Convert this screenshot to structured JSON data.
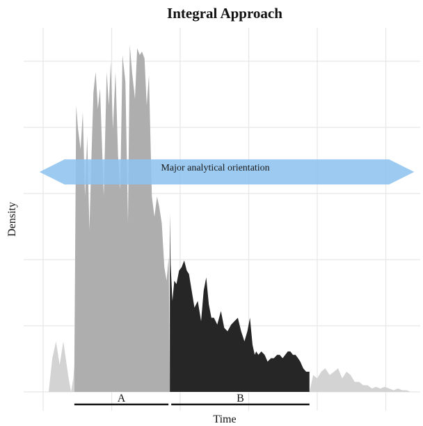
{
  "chart_data": {
    "type": "area",
    "title": "Integral Approach",
    "xlabel": "Time",
    "ylabel": "Density",
    "xlim": [
      0,
      100
    ],
    "ylim": [
      0,
      100
    ],
    "grid": true,
    "axis_ticks_shown": false,
    "segments": [
      {
        "label": "A",
        "x_start": 8.5,
        "x_end": 34.5,
        "color": "#aeaeae"
      },
      {
        "label": "B",
        "x_start": 34.5,
        "x_end": 72.5,
        "color": "#262626"
      }
    ],
    "tail_color": "#d3d3d3",
    "arrow": {
      "label": "Major analytical orientation",
      "x_start": -1,
      "x_end": 101,
      "color": "#8ec3ee"
    },
    "series": [
      {
        "x": [
          0,
          1.5,
          2.5,
          3.5,
          4.5,
          5.5,
          6.8,
          7.6,
          8.2,
          8.5,
          9.0,
          9.5,
          10.2,
          10.8,
          11.4,
          12.0,
          12.6,
          13.1,
          13.7,
          14.3,
          14.9,
          15.5,
          16.5,
          17.3,
          17.9,
          18.4,
          19.0,
          19.7,
          20.4,
          21.0,
          21.6,
          22.4,
          23.1,
          23.6,
          24.2,
          25.0,
          25.6,
          26.3,
          26.9,
          27.6,
          28.2,
          28.8,
          29.6,
          30.3,
          31.0,
          31.6,
          32.3,
          33.0,
          33.6,
          34.2,
          34.5,
          34.7,
          35.2,
          35.7,
          36.3,
          37.0,
          37.7,
          38.4,
          39.1,
          39.7,
          40.3,
          41.2,
          42.1,
          43.0,
          43.7,
          44.4,
          45.1,
          45.8,
          46.5,
          47.4,
          48.4,
          49.3,
          50.2,
          51.2,
          52.1,
          53.0,
          53.9,
          54.8,
          55.6,
          56.3,
          57.0,
          57.6,
          58.0,
          58.6,
          59.4,
          60.3,
          61.1,
          62.0,
          62.8,
          63.7,
          64.4,
          65.2,
          65.9,
          66.6,
          67.3,
          68.0,
          68.7,
          69.4,
          70.0,
          70.8,
          71.6,
          72.5,
          73.5,
          74.6,
          75.7,
          76.8,
          78.0,
          79.2,
          80.3,
          81.4,
          82.6,
          83.7,
          84.8,
          86.0,
          87.1,
          88.3,
          89.5,
          90.6,
          91.8,
          93.0,
          94.2,
          95.4,
          96.6,
          97.8,
          99.0,
          100
        ],
        "y": [
          0,
          0,
          10,
          15,
          8,
          15,
          5,
          0,
          4,
          8,
          85,
          78,
          72,
          83,
          58,
          76,
          48,
          68,
          89,
          95,
          84,
          90,
          58,
          95,
          85,
          98,
          78,
          95,
          70,
          60,
          100,
          92,
          50,
          103,
          95,
          87,
          102,
          100,
          101,
          99,
          85,
          94,
          58,
          52,
          58,
          55,
          50,
          37,
          33,
          40,
          0,
          0,
          0,
          0,
          0,
          0,
          0,
          0,
          0,
          0,
          0,
          0,
          0,
          0,
          0,
          0,
          0,
          0,
          0,
          0,
          0,
          0,
          0,
          0,
          0,
          0,
          0,
          0,
          0,
          0,
          0,
          0,
          0,
          0,
          0,
          0,
          0,
          0,
          0,
          0,
          0,
          0,
          0,
          0,
          0,
          0,
          0,
          0,
          0,
          0,
          0,
          0,
          5,
          4,
          6,
          7,
          5,
          6,
          7,
          4,
          6,
          5,
          3,
          3,
          2,
          2,
          1,
          1.5,
          1,
          1.5,
          1,
          0.5,
          1,
          0.5,
          0.5,
          0
        ],
        "y_b": [
          0,
          0,
          0,
          0,
          0,
          0,
          0,
          0,
          0,
          0,
          0,
          0,
          0,
          0,
          0,
          0,
          0,
          0,
          0,
          0,
          0,
          0,
          0,
          0,
          0,
          0,
          0,
          0,
          0,
          0,
          0,
          0,
          0,
          0,
          0,
          0,
          0,
          0,
          0,
          0,
          0,
          0,
          0,
          0,
          0,
          0,
          0,
          0,
          0,
          0,
          53,
          38,
          27,
          33,
          32,
          36,
          37,
          39,
          36,
          35,
          31,
          25,
          27,
          21,
          30,
          34,
          26,
          22,
          22,
          20,
          24,
          19,
          18,
          20,
          21,
          22,
          18,
          15,
          18,
          22,
          14,
          11,
          12,
          11,
          12,
          11,
          9,
          10,
          10,
          11,
          11,
          10,
          11,
          12,
          12,
          11,
          11,
          10,
          9,
          7,
          6,
          6,
          0,
          0,
          0,
          0,
          0,
          0,
          0,
          0,
          0,
          0,
          0,
          0,
          0,
          0,
          0,
          0,
          0,
          0,
          0,
          0,
          0,
          0,
          0,
          0
        ]
      }
    ]
  }
}
